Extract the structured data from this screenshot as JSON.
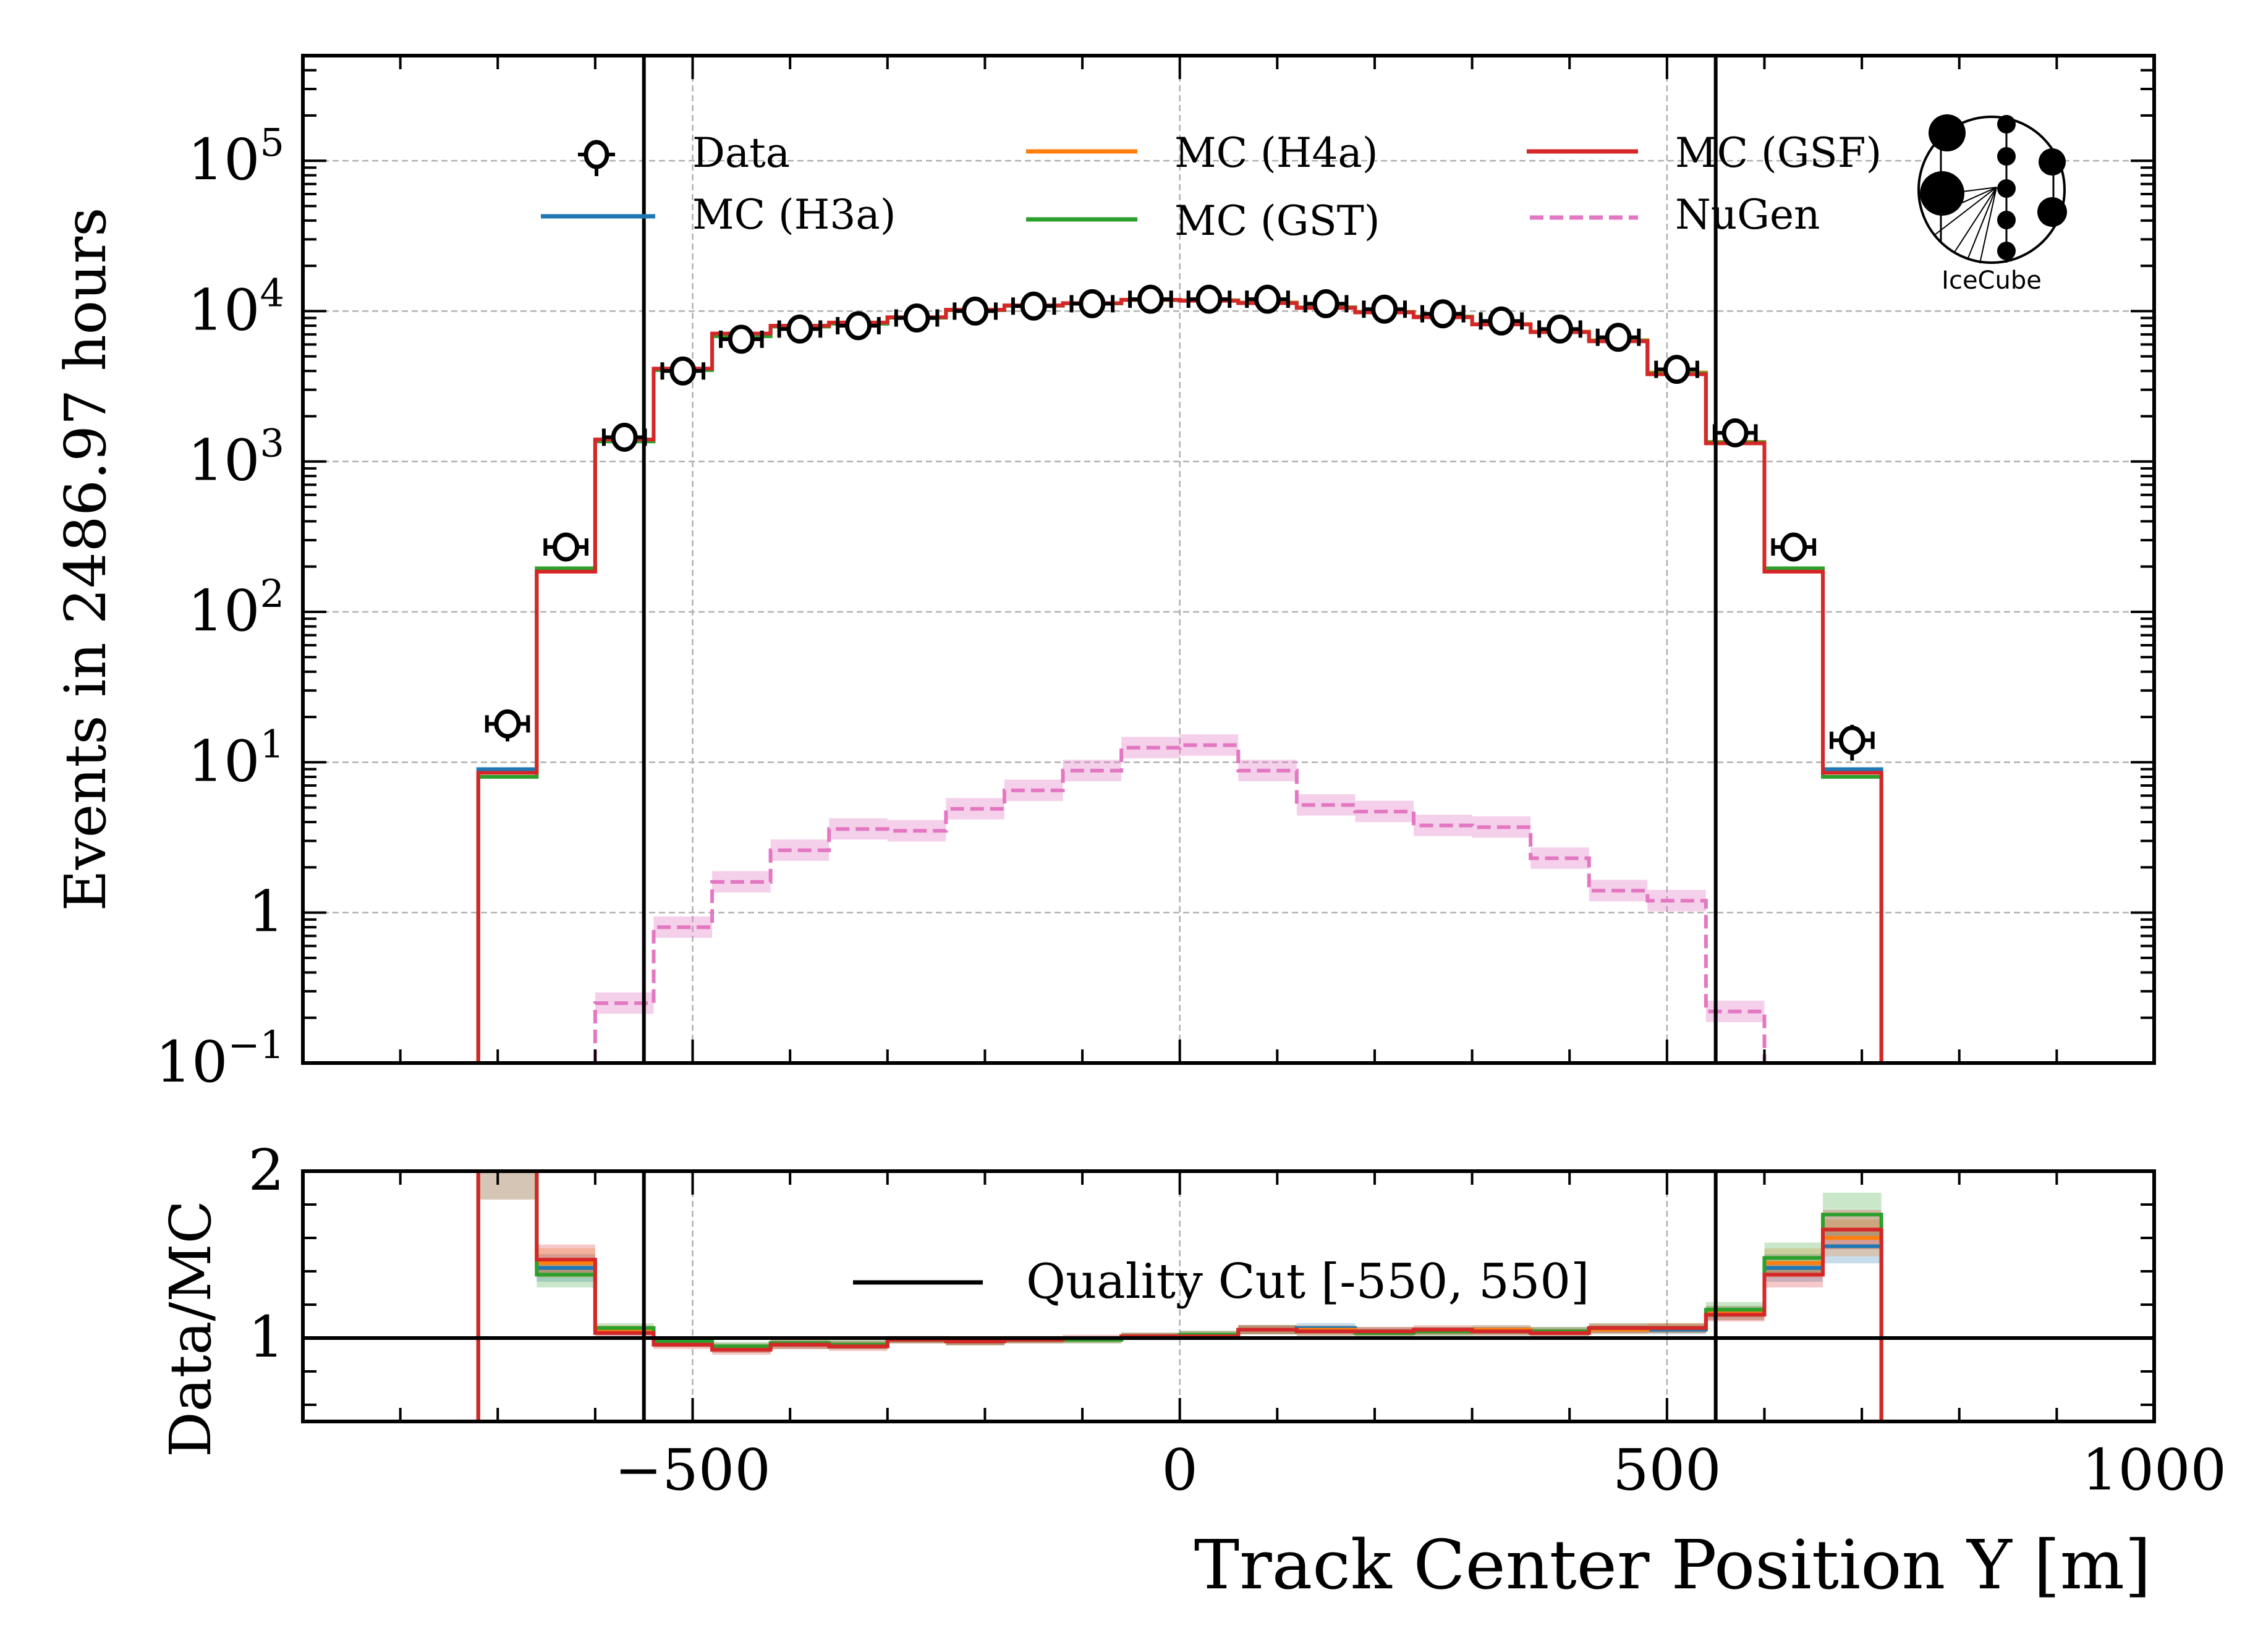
{
  "chart_data": [
    {
      "type": "line",
      "panel": "main",
      "title": "",
      "ylabel": "Events in 2486.97 hours",
      "xlabel": "",
      "yscale": "log",
      "ylim": [
        0.1,
        500000
      ],
      "xlim": [
        -900,
        1000
      ],
      "grid": true,
      "ytick_labels": [
        {
          "value": 0.1,
          "base": "10",
          "exp": "−1"
        },
        {
          "value": 1,
          "base": "1",
          "exp": ""
        },
        {
          "value": 10,
          "base": "10",
          "exp": "1"
        },
        {
          "value": 100,
          "base": "10",
          "exp": "2"
        },
        {
          "value": 1000,
          "base": "10",
          "exp": "3"
        },
        {
          "value": 10000,
          "base": "10",
          "exp": "4"
        },
        {
          "value": 100000,
          "base": "10",
          "exp": "5"
        }
      ],
      "bin_edges": [
        -720,
        -660,
        -600,
        -540,
        -480,
        -420,
        -360,
        -300,
        -240,
        -180,
        -120,
        -60,
        0,
        60,
        120,
        180,
        240,
        300,
        360,
        420,
        480,
        540,
        600,
        660,
        720
      ],
      "series": [
        {
          "name": "Data",
          "style": "points",
          "color": "#000000",
          "values": [
            18,
            270,
            1450,
            4000,
            6500,
            7600,
            8000,
            9000,
            10000,
            10800,
            11200,
            12000,
            12000,
            12000,
            11200,
            10300,
            9600,
            8600,
            7600,
            6700,
            4100,
            1550,
            270,
            14
          ]
        },
        {
          "name": "MC (H3a)",
          "style": "step",
          "color": "#1f77b4",
          "values": [
            9,
            190,
            1400,
            4100,
            6900,
            7900,
            8300,
            9100,
            10200,
            10900,
            11300,
            11900,
            11800,
            11400,
            10600,
            9900,
            9200,
            8200,
            7300,
            6400,
            3900,
            1350,
            190,
            9
          ]
        },
        {
          "name": "MC (H4a)",
          "style": "step",
          "color": "#ff7f0e",
          "values": [
            8.5,
            185,
            1380,
            4100,
            6900,
            7900,
            8300,
            9100,
            10200,
            10900,
            11300,
            11900,
            11800,
            11400,
            10600,
            9900,
            9200,
            8200,
            7300,
            6400,
            3900,
            1350,
            185,
            8.5
          ]
        },
        {
          "name": "MC (GST)",
          "style": "step",
          "color": "#2ca02c",
          "values": [
            8,
            195,
            1360,
            4050,
            6800,
            7900,
            8250,
            9050,
            10150,
            10850,
            11250,
            11850,
            11750,
            11350,
            10550,
            9850,
            9150,
            8150,
            7250,
            6350,
            3850,
            1340,
            195,
            8
          ]
        },
        {
          "name": "MC (GSF)",
          "style": "step",
          "color": "#d62728",
          "values": [
            8.5,
            185,
            1400,
            4150,
            7100,
            8000,
            8400,
            9100,
            10200,
            10900,
            11300,
            11900,
            11700,
            11300,
            10500,
            9800,
            9100,
            8150,
            7250,
            6300,
            3800,
            1320,
            185,
            8.5
          ]
        },
        {
          "name": "NuGen",
          "style": "dashed-step",
          "color": "#e377c2",
          "values": [
            null,
            null,
            0.25,
            0.8,
            1.6,
            2.6,
            3.6,
            3.5,
            4.9,
            6.5,
            8.8,
            12.5,
            13,
            8.8,
            5.2,
            4.7,
            3.8,
            3.7,
            2.3,
            1.4,
            1.2,
            0.22,
            null,
            null
          ]
        }
      ],
      "vlines": [
        -550,
        550
      ],
      "legend": {
        "placement": "top",
        "columns": 3,
        "entries": [
          "Data",
          "MC (H3a)",
          "MC (H4a)",
          "MC (GST)",
          "MC (GSF)",
          "NuGen"
        ]
      },
      "logo": "IceCube"
    },
    {
      "type": "line",
      "panel": "ratio",
      "ylabel": "Data/MC",
      "xlabel": "Track Center Position Y [m]",
      "ylim": [
        0.5,
        2
      ],
      "xlim": [
        -900,
        1000
      ],
      "ytick_labels": [
        {
          "value": 1,
          "label": "1"
        },
        {
          "value": 2,
          "label": "2"
        }
      ],
      "xtick_labels": [
        {
          "value": -500,
          "label": "−500"
        },
        {
          "value": 0,
          "label": "0"
        },
        {
          "value": 500,
          "label": "500"
        },
        {
          "value": 1000,
          "label": "1000"
        }
      ],
      "series": [
        {
          "name": "MC (H3a)",
          "color": "#1f77b4",
          "values": [
            2.0,
            1.42,
            1.04,
            0.97,
            0.94,
            0.96,
            0.96,
            0.99,
            0.98,
            0.99,
            0.99,
            1.01,
            1.02,
            1.05,
            1.06,
            1.04,
            1.04,
            1.05,
            1.04,
            1.05,
            1.05,
            1.15,
            1.42,
            1.55
          ]
        },
        {
          "name": "MC (H4a)",
          "color": "#ff7f0e",
          "values": [
            2.0,
            1.45,
            1.05,
            0.97,
            0.94,
            0.96,
            0.96,
            0.99,
            0.98,
            0.99,
            0.99,
            1.01,
            1.02,
            1.05,
            1.05,
            1.04,
            1.04,
            1.05,
            1.04,
            1.05,
            1.06,
            1.15,
            1.45,
            1.6
          ]
        },
        {
          "name": "MC (GST)",
          "color": "#2ca02c",
          "values": [
            2.2,
            1.38,
            1.06,
            0.98,
            0.95,
            0.97,
            0.96,
            0.99,
            0.98,
            0.99,
            0.99,
            1.01,
            1.02,
            1.05,
            1.04,
            1.03,
            1.04,
            1.04,
            1.04,
            1.06,
            1.06,
            1.17,
            1.48,
            1.74
          ]
        },
        {
          "name": "MC (GSF)",
          "color": "#d62728",
          "values": [
            2.2,
            1.47,
            1.03,
            0.96,
            0.93,
            0.96,
            0.95,
            0.99,
            0.98,
            0.99,
            1.0,
            1.01,
            1.01,
            1.05,
            1.04,
            1.04,
            1.05,
            1.04,
            1.03,
            1.06,
            1.06,
            1.14,
            1.38,
            1.65
          ]
        }
      ],
      "hline": 1,
      "vlines": [
        -550,
        550
      ],
      "legend": {
        "placement": "center",
        "entries": [
          "Quality Cut [-550, 550]"
        ]
      }
    }
  ]
}
